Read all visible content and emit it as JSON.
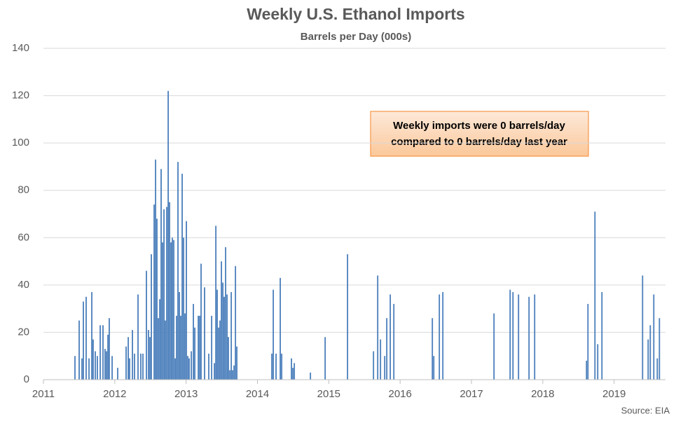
{
  "chart_data": {
    "type": "bar",
    "title": "Weekly U.S. Ethanol Imports",
    "subtitle": "Barrels per Day (000s)",
    "annotation": [
      "Weekly imports were 0 barrels/day",
      "compared to 0 barrels/day last year"
    ],
    "source": "Source: EIA",
    "color": "#4a7ebb",
    "x": [
      2011.442,
      2011.501,
      2011.54,
      2011.56,
      2011.599,
      2011.639,
      2011.678,
      2011.697,
      2011.727,
      2011.756,
      2011.796,
      2011.835,
      2011.864,
      2011.884,
      2011.904,
      2011.923,
      2011.963,
      2012.041,
      2012.159,
      2012.189,
      2012.208,
      2012.248,
      2012.277,
      2012.326,
      2012.365,
      2012.395,
      2012.444,
      2012.473,
      2012.493,
      2012.513,
      2012.552,
      2012.572,
      2012.591,
      2012.611,
      2012.631,
      2012.65,
      2012.67,
      2012.69,
      2012.709,
      2012.729,
      2012.749,
      2012.768,
      2012.788,
      2012.807,
      2012.827,
      2012.847,
      2012.866,
      2012.886,
      2012.906,
      2012.925,
      2012.945,
      2012.965,
      2012.984,
      2013.004,
      2013.024,
      2013.043,
      2013.073,
      2013.102,
      2013.122,
      2013.171,
      2013.191,
      2013.21,
      2013.259,
      2013.318,
      2013.358,
      2013.397,
      2013.417,
      2013.436,
      2013.456,
      2013.475,
      2013.495,
      2013.515,
      2013.534,
      2013.554,
      2013.574,
      2013.593,
      2013.613,
      2013.633,
      2013.652,
      2013.672,
      2013.692,
      2013.711,
      2014.202,
      2014.222,
      2014.261,
      2014.32,
      2014.34,
      2014.477,
      2014.497,
      2014.517,
      2014.743,
      2014.949,
      2015.263,
      2015.627,
      2015.686,
      2015.725,
      2015.784,
      2015.813,
      2015.862,
      2015.912,
      2016.452,
      2016.472,
      2016.55,
      2016.599,
      2017.316,
      2017.542,
      2017.582,
      2017.66,
      2017.807,
      2017.886,
      2018.613,
      2018.633,
      2018.731,
      2018.77,
      2018.829,
      2019.399,
      2019.477,
      2019.507,
      2019.556,
      2019.605,
      2019.635
    ],
    "values": [
      10,
      25,
      9,
      33,
      35,
      9,
      37,
      17,
      12,
      10,
      23,
      23,
      13,
      12,
      19,
      26,
      10,
      5,
      14,
      18,
      9,
      21,
      11,
      36,
      11,
      11,
      46,
      21,
      18,
      53,
      74,
      93,
      68,
      26,
      34,
      89,
      58,
      72,
      25,
      73,
      122,
      75,
      58,
      60,
      59,
      9,
      27,
      92,
      37,
      27,
      87,
      60,
      28,
      67,
      10,
      9,
      12,
      32,
      22,
      27,
      27,
      49,
      39,
      11,
      27,
      7,
      65,
      38,
      22,
      25,
      50,
      41,
      35,
      56,
      36,
      18,
      4,
      37,
      4,
      6,
      48,
      14,
      11,
      38,
      11,
      43,
      11,
      9,
      5,
      7,
      3,
      18,
      53,
      12,
      44,
      17,
      10,
      26,
      36,
      32,
      26,
      10,
      36,
      37,
      28,
      38,
      37,
      36,
      35,
      36,
      8,
      32,
      71,
      15,
      37,
      44,
      17,
      23,
      36,
      9,
      26
    ],
    "xlim": [
      2011,
      2019.72
    ],
    "xticks": [
      2011,
      2012,
      2013,
      2014,
      2015,
      2016,
      2017,
      2018,
      2019
    ],
    "ylim": [
      0,
      140
    ],
    "yticks": [
      0,
      20,
      40,
      60,
      80,
      100,
      120,
      140
    ],
    "grid": true
  }
}
